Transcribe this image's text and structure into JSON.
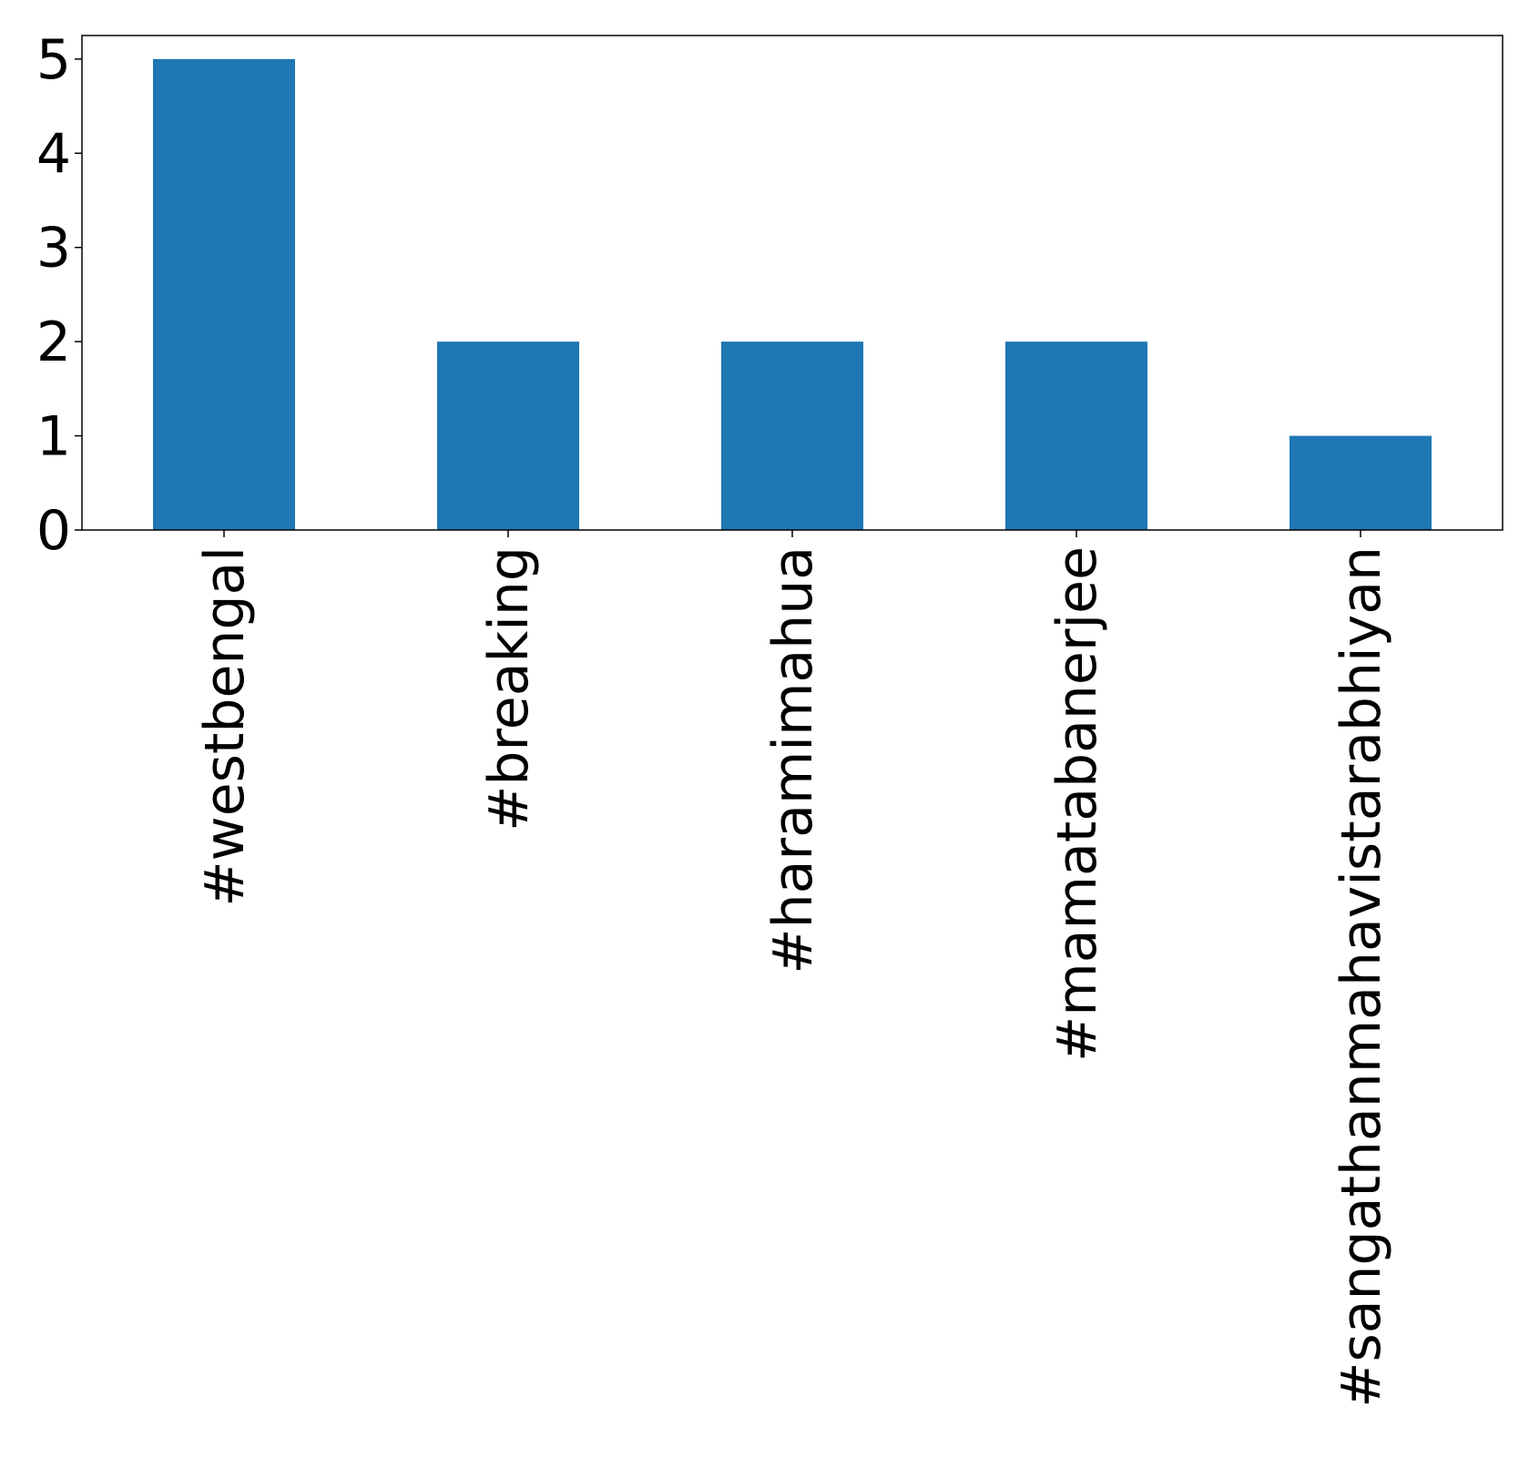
{
  "chart_data": {
    "type": "bar",
    "title": "",
    "xlabel": "",
    "ylabel": "",
    "categories": [
      "#westbengal",
      "#breaking",
      "#haramimahua",
      "#mamatabanerjee",
      "#sangathanmahavistarabhiyan"
    ],
    "values": [
      5,
      2,
      2,
      2,
      1
    ],
    "ylim": [
      0,
      5.25
    ],
    "yticks": [
      0,
      1,
      2,
      3,
      4,
      5
    ],
    "bar_color": "#1f77b4",
    "grid": false,
    "legend": "none"
  }
}
